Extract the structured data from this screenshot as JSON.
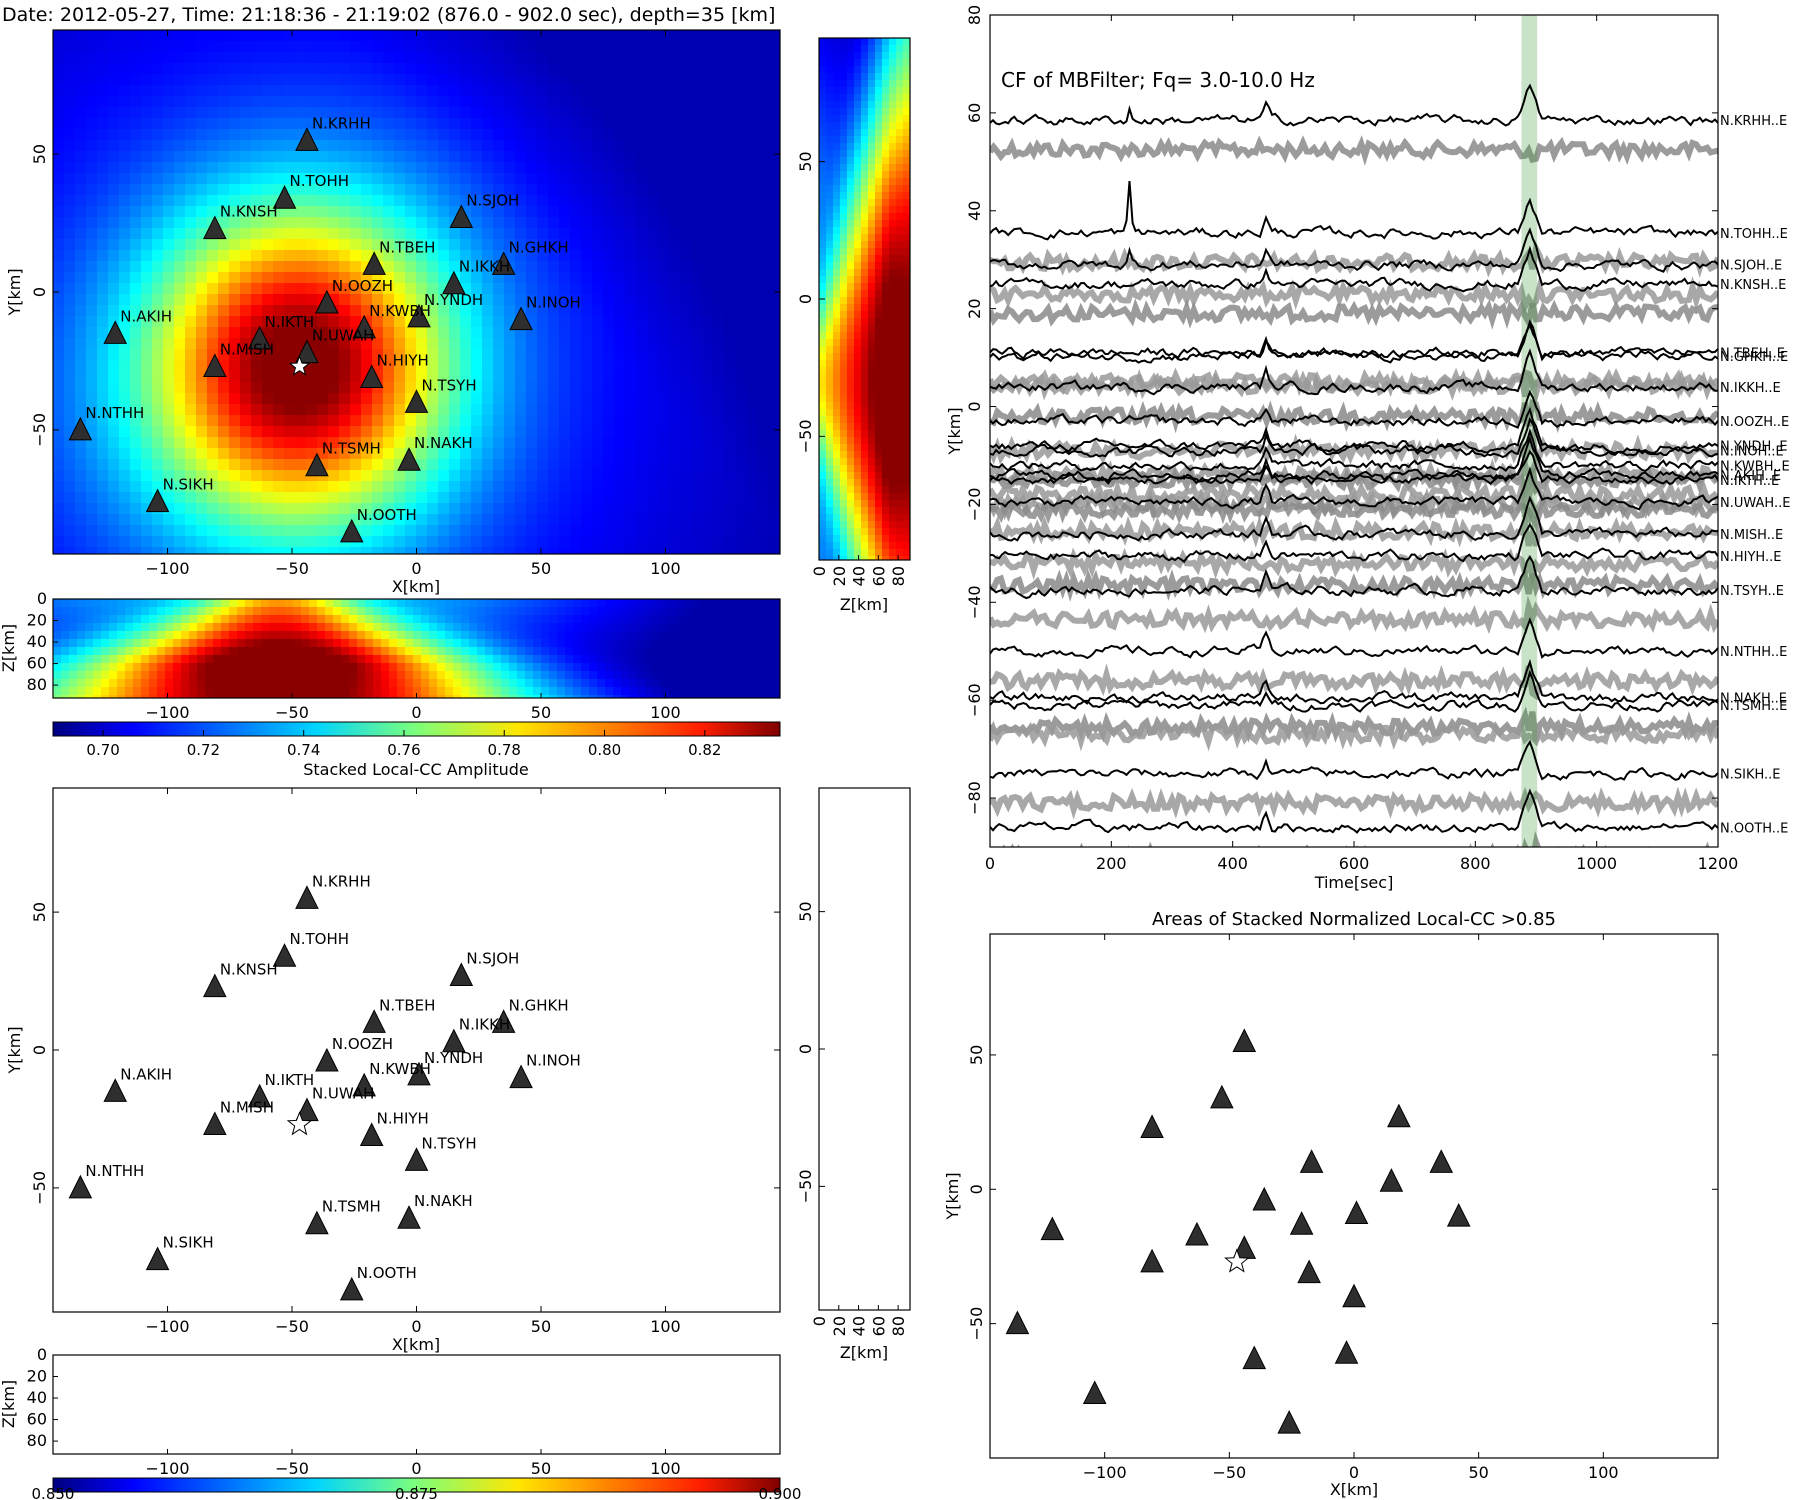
{
  "figure": {
    "title": "Date: 2012-05-27, Time: 21:18:36 - 21:19:02  (876.0 - 902.0  sec), depth=35 [km]"
  },
  "stations": [
    {
      "name": "N.KRHH",
      "x": -44,
      "y": 55
    },
    {
      "name": "N.TOHH",
      "x": -53,
      "y": 34
    },
    {
      "name": "N.KNSH",
      "x": -81,
      "y": 23
    },
    {
      "name": "N.SJOH",
      "x": 18,
      "y": 27
    },
    {
      "name": "N.TBEH",
      "x": -17,
      "y": 10
    },
    {
      "name": "N.GHKH",
      "x": 35,
      "y": 10
    },
    {
      "name": "N.IKKH",
      "x": 15,
      "y": 3
    },
    {
      "name": "N.OOZH",
      "x": -36,
      "y": -4
    },
    {
      "name": "N.YNDH",
      "x": 1,
      "y": -9
    },
    {
      "name": "N.INOH",
      "x": 42,
      "y": -10
    },
    {
      "name": "N.AKIH",
      "x": -121,
      "y": -15
    },
    {
      "name": "N.KWBH",
      "x": -21,
      "y": -13
    },
    {
      "name": "N.IKTH",
      "x": -63,
      "y": -17
    },
    {
      "name": "N.UWAH",
      "x": -44,
      "y": -22
    },
    {
      "name": "N.MISH",
      "x": -81,
      "y": -27
    },
    {
      "name": "N.HIYH",
      "x": -18,
      "y": -31
    },
    {
      "name": "N.TSYH",
      "x": 0,
      "y": -40
    },
    {
      "name": "N.NTHH",
      "x": -135,
      "y": -50
    },
    {
      "name": "N.NAKH",
      "x": -3,
      "y": -61
    },
    {
      "name": "N.TSMH",
      "x": -40,
      "y": -63
    },
    {
      "name": "N.SIKH",
      "x": -104,
      "y": -76
    },
    {
      "name": "N.OOTH",
      "x": -26,
      "y": -87
    }
  ],
  "epicenter": {
    "x": -47,
    "y": -27
  },
  "chart_data": [
    {
      "type": "heatmap",
      "panel": "map-xy-stacked-cc",
      "title": "",
      "xlabel": "X[km]",
      "ylabel": "Y[km]",
      "xlim": [
        -146,
        146
      ],
      "ylim": [
        -95,
        95
      ],
      "xticks": [
        -100,
        -50,
        0,
        50,
        100
      ],
      "yticks": [
        -50,
        0,
        50
      ],
      "peak": {
        "x": -48,
        "y": -30,
        "value": 0.835
      },
      "value_range": [
        0.69,
        0.835
      ]
    },
    {
      "type": "heatmap",
      "panel": "section-zy-stacked-cc",
      "xlabel": "Z[km]",
      "xlim": [
        0,
        92
      ],
      "ylim": [
        -95,
        95
      ],
      "xticks": [
        0,
        20,
        40,
        60,
        80
      ],
      "yticks": [
        -50,
        0,
        50
      ],
      "peak": {
        "z": 70,
        "y": -30
      }
    },
    {
      "type": "heatmap",
      "panel": "section-xz-stacked-cc",
      "ylabel": "Z[km]",
      "xlim": [
        -146,
        146
      ],
      "ylim": [
        0,
        92
      ],
      "xticks": [
        -100,
        -50,
        0,
        50,
        100
      ],
      "yticks": [
        0,
        20,
        40,
        60,
        80
      ],
      "peak": {
        "x": -55,
        "z": 60
      }
    },
    {
      "type": "heatmap",
      "panel": "colorbar-stacked-cc",
      "xlabel": "Stacked Local-CC Amplitude",
      "range": [
        0.69,
        0.835
      ],
      "ticks": [
        "0.70",
        "0.72",
        "0.74",
        "0.76",
        "0.78",
        "0.80",
        "0.82"
      ]
    },
    {
      "type": "scatter",
      "panel": "map-xy-threshold",
      "xlabel": "X[km]",
      "ylabel": "Y[km]",
      "xlim": [
        -146,
        146
      ],
      "ylim": [
        -95,
        95
      ],
      "xticks": [
        -100,
        -50,
        0,
        50,
        100
      ],
      "yticks": [
        -50,
        0,
        50
      ]
    },
    {
      "type": "scatter",
      "panel": "section-zy-threshold",
      "xlabel": "Z[km]",
      "xlim": [
        0,
        92
      ],
      "ylim": [
        -95,
        95
      ],
      "xticks": [
        0,
        20,
        40,
        60,
        80
      ],
      "yticks": [
        -50,
        0,
        50
      ]
    },
    {
      "type": "scatter",
      "panel": "section-xz-threshold",
      "ylabel": "Z[km]",
      "xlim": [
        -146,
        146
      ],
      "ylim": [
        0,
        92
      ],
      "xticks": [
        -100,
        -50,
        0,
        50,
        100
      ],
      "yticks": [
        0,
        20,
        40,
        60,
        80
      ]
    },
    {
      "type": "heatmap",
      "panel": "colorbar-threshold",
      "range": [
        0.85,
        0.9
      ],
      "ticks": [
        "0.850",
        "0.875",
        "0.900"
      ]
    },
    {
      "type": "line",
      "panel": "waveforms",
      "title": "",
      "annotation": "CF of MBFilter; Fq= 3.0-10.0 Hz",
      "xlabel": "Time[sec]",
      "ylabel": "Y[km]",
      "xlim": [
        0,
        1200
      ],
      "ylim": [
        -90,
        80
      ],
      "xticks": [
        0,
        200,
        400,
        600,
        800,
        1000,
        1200
      ],
      "yticks": [
        -80,
        -60,
        -40,
        -20,
        0,
        20,
        40,
        60,
        80
      ],
      "highlight_window": [
        876,
        902
      ],
      "trace_labels": [
        {
          "label": "N.KRHH..E",
          "y": 58.5
        },
        {
          "label": "N.TOHH..E",
          "y": 35.5
        },
        {
          "label": "N.SJOH..E",
          "y": 29
        },
        {
          "label": "N.KNSH..E",
          "y": 25
        },
        {
          "label": "N.TBEH..E",
          "y": 11
        },
        {
          "label": "N.GHKH..E",
          "y": 10.3
        },
        {
          "label": "N.IKKH..E",
          "y": 4
        },
        {
          "label": "N.OOZH..E",
          "y": -3
        },
        {
          "label": "N.YNDH..E",
          "y": -8
        },
        {
          "label": "N.INOH..E",
          "y": -9
        },
        {
          "label": "N.KWBH..E",
          "y": -12
        },
        {
          "label": "N.AKIH..E",
          "y": -14
        },
        {
          "label": "N.IKTH..E",
          "y": -15
        },
        {
          "label": "N.UWAH..E",
          "y": -19.5
        },
        {
          "label": "N.MISH..E",
          "y": -26
        },
        {
          "label": "N.HIYH..E",
          "y": -30.5
        },
        {
          "label": "N.TSYH..E",
          "y": -37.5
        },
        {
          "label": "N.NTHH..E",
          "y": -50
        },
        {
          "label": "N.NAKH..E",
          "y": -59.5
        },
        {
          "label": "N.TSMH..E",
          "y": -61
        },
        {
          "label": "N.SIKH..E",
          "y": -75
        },
        {
          "label": "N.OOTH..E",
          "y": -86
        }
      ]
    },
    {
      "type": "scatter",
      "panel": "threshold-areas",
      "title": "Areas of Stacked Normalized Local-CC >0.85",
      "xlabel": "X[km]",
      "ylabel": "Y[km]",
      "xlim": [
        -146,
        146
      ],
      "ylim": [
        -100,
        95
      ],
      "xticks": [
        -100,
        -50,
        0,
        50,
        100
      ],
      "yticks": [
        -50,
        0,
        50
      ]
    }
  ]
}
